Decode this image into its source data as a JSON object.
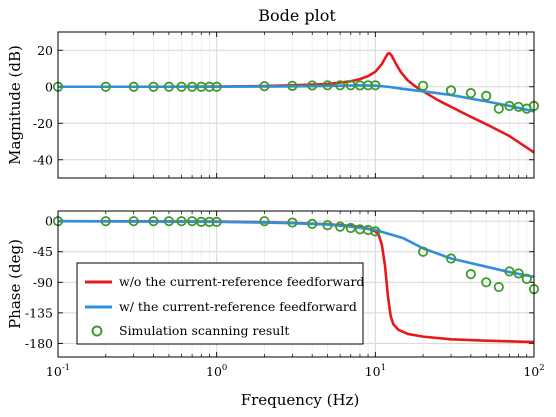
{
  "chart_data": [
    {
      "type": "line",
      "title": "Bode plot",
      "xlabel": "",
      "ylabel": "Magnitude (dB)",
      "xscale": "log",
      "xlim": [
        0.1,
        100
      ],
      "ylim": [
        -50,
        30
      ],
      "yticks": [
        {
          "value": 20,
          "label": "20"
        },
        {
          "value": 0,
          "label": "0"
        },
        {
          "value": -20,
          "label": "-20"
        },
        {
          "value": -40,
          "label": "-40"
        }
      ],
      "grid": true,
      "series": [
        {
          "name": "w/o the current-reference feedforward",
          "kind": "line",
          "color": "#e8191c",
          "points": [
            [
              0.1,
              0
            ],
            [
              0.3,
              0
            ],
            [
              1,
              0.1
            ],
            [
              2,
              0.4
            ],
            [
              3,
              0.8
            ],
            [
              5,
              1.5
            ],
            [
              7,
              3
            ],
            [
              8,
              4.2
            ],
            [
              9,
              5.8
            ],
            [
              10,
              8.2
            ],
            [
              11,
              12.5
            ],
            [
              11.5,
              15.5
            ],
            [
              12,
              18.2
            ],
            [
              12.3,
              18.3
            ],
            [
              12.7,
              17
            ],
            [
              13.5,
              12.5
            ],
            [
              14.5,
              8
            ],
            [
              16,
              3.5
            ],
            [
              18,
              0
            ],
            [
              20,
              -2.5
            ],
            [
              25,
              -7.5
            ],
            [
              30,
              -11
            ],
            [
              40,
              -16.5
            ],
            [
              50,
              -20.5
            ],
            [
              70,
              -27
            ],
            [
              100,
              -36
            ]
          ]
        },
        {
          "name": "w/ the current-reference feedforward",
          "kind": "line",
          "color": "#2f8fe0",
          "points": [
            [
              0.1,
              0
            ],
            [
              1,
              0
            ],
            [
              2,
              0.1
            ],
            [
              4,
              0.3
            ],
            [
              6,
              0.6
            ],
            [
              8,
              0.8
            ],
            [
              10,
              0.6
            ],
            [
              12,
              0
            ],
            [
              15,
              -1.2
            ],
            [
              20,
              -2.5
            ],
            [
              30,
              -4.5
            ],
            [
              40,
              -6.5
            ],
            [
              50,
              -8
            ],
            [
              70,
              -10.5
            ],
            [
              100,
              -13.5
            ]
          ]
        },
        {
          "name": "Simulation scanning result",
          "kind": "scatter",
          "color": "#3f9a2c",
          "points": [
            [
              0.1,
              0
            ],
            [
              0.2,
              0
            ],
            [
              0.3,
              0
            ],
            [
              0.4,
              0
            ],
            [
              0.5,
              0
            ],
            [
              0.6,
              0
            ],
            [
              0.7,
              0
            ],
            [
              0.8,
              0
            ],
            [
              0.9,
              0
            ],
            [
              1,
              0
            ],
            [
              2,
              0.3
            ],
            [
              3,
              0.5
            ],
            [
              4,
              0.7
            ],
            [
              5,
              0.8
            ],
            [
              6,
              0.8
            ],
            [
              7,
              0.8
            ],
            [
              8,
              0.7
            ],
            [
              9,
              0.8
            ],
            [
              10,
              0.8
            ],
            [
              20,
              0.5
            ],
            [
              30,
              -2
            ],
            [
              40,
              -3.5
            ],
            [
              50,
              -5
            ],
            [
              60,
              -12
            ],
            [
              70,
              -10.5
            ],
            [
              80,
              -11
            ],
            [
              90,
              -12
            ],
            [
              100,
              -10.5
            ]
          ]
        }
      ]
    },
    {
      "type": "line",
      "title": "",
      "xlabel": "Frequency (Hz)",
      "ylabel": "Phase (deg)",
      "xscale": "log",
      "xlim": [
        0.1,
        100
      ],
      "ylim": [
        -200,
        15
      ],
      "yticks": [
        {
          "value": 0,
          "label": "0"
        },
        {
          "value": -45,
          "label": "-45"
        },
        {
          "value": -90,
          "label": "-90"
        },
        {
          "value": -135,
          "label": "-135"
        },
        {
          "value": -180,
          "label": "-180"
        }
      ],
      "xticks": [
        {
          "value": 0.1,
          "base": "10",
          "exp": "-1"
        },
        {
          "value": 1,
          "base": "10",
          "exp": "0"
        },
        {
          "value": 10,
          "base": "10",
          "exp": "1"
        },
        {
          "value": 100,
          "base": "10",
          "exp": "2"
        }
      ],
      "grid": true,
      "legend_position": "bottom-left",
      "series": [
        {
          "name": "w/o the current-reference feedforward",
          "kind": "line",
          "color": "#e8191c",
          "points": [
            [
              0.1,
              0
            ],
            [
              1,
              -0.5
            ],
            [
              2,
              -1.5
            ],
            [
              3,
              -2.5
            ],
            [
              5,
              -4.5
            ],
            [
              7,
              -7
            ],
            [
              8,
              -8.5
            ],
            [
              9,
              -11
            ],
            [
              10,
              -15
            ],
            [
              10.5,
              -20
            ],
            [
              11,
              -35
            ],
            [
              11.5,
              -65
            ],
            [
              12,
              -110
            ],
            [
              12.5,
              -140
            ],
            [
              13,
              -152
            ],
            [
              14,
              -160
            ],
            [
              16,
              -166
            ],
            [
              20,
              -170
            ],
            [
              30,
              -174
            ],
            [
              50,
              -176
            ],
            [
              100,
              -178
            ]
          ]
        },
        {
          "name": "w/ the current-reference feedforward",
          "kind": "line",
          "color": "#2f8fe0",
          "points": [
            [
              0.1,
              0
            ],
            [
              0.5,
              -0.5
            ],
            [
              1,
              -1
            ],
            [
              2,
              -2
            ],
            [
              3,
              -3
            ],
            [
              5,
              -5
            ],
            [
              7,
              -8
            ],
            [
              10,
              -13
            ],
            [
              15,
              -25
            ],
            [
              20,
              -40
            ],
            [
              30,
              -55
            ],
            [
              50,
              -67
            ],
            [
              70,
              -75
            ],
            [
              100,
              -82
            ]
          ]
        },
        {
          "name": "Simulation scanning result",
          "kind": "scatter",
          "color": "#3f9a2c",
          "points": [
            [
              0.1,
              0
            ],
            [
              0.2,
              0
            ],
            [
              0.3,
              0
            ],
            [
              0.4,
              0
            ],
            [
              0.5,
              0
            ],
            [
              0.6,
              0
            ],
            [
              0.7,
              0
            ],
            [
              0.8,
              -1
            ],
            [
              0.9,
              -1
            ],
            [
              1,
              -1
            ],
            [
              2,
              0
            ],
            [
              3,
              -2
            ],
            [
              4,
              -4
            ],
            [
              5,
              -6
            ],
            [
              6,
              -8
            ],
            [
              7,
              -10
            ],
            [
              8,
              -12
            ],
            [
              9,
              -13
            ],
            [
              10,
              -15
            ],
            [
              20,
              -45
            ],
            [
              30,
              -55
            ],
            [
              40,
              -78
            ],
            [
              50,
              -90
            ],
            [
              60,
              -97
            ],
            [
              70,
              -74
            ],
            [
              80,
              -77
            ],
            [
              90,
              -85
            ],
            [
              100,
              -100
            ]
          ]
        }
      ]
    }
  ]
}
